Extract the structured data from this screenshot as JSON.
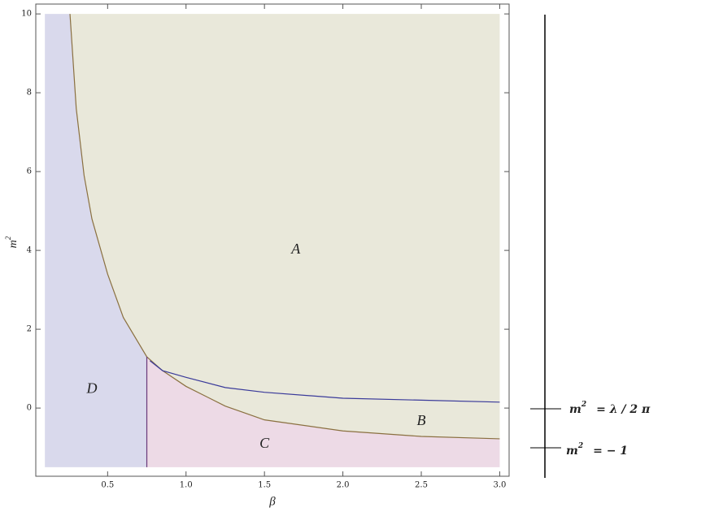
{
  "chart_data": {
    "type": "region",
    "x_label": "β",
    "y_label": "m",
    "y_label_sup": "2",
    "xlim": [
      0.042,
      3.06
    ],
    "ylim": [
      -1.73,
      10.25
    ],
    "xticks": [
      0.5,
      {
        "value": 1,
        "label": "1.0"
      },
      1.5,
      {
        "value": 2,
        "label": "2.0"
      },
      2.5,
      {
        "value": 3,
        "label": "3.0"
      }
    ],
    "yticks": [
      0,
      2,
      4,
      6,
      8,
      10
    ],
    "regions": [
      {
        "color": "#d9d9ec",
        "x": [
          0.1,
          0.1,
          0.26,
          0.3,
          0.35,
          0.4,
          0.5,
          0.6,
          0.75,
          0.75
        ],
        "y": [
          -1.5,
          10,
          10,
          7.6,
          5.9,
          4.8,
          3.4,
          2.3,
          1.3,
          -1.5
        ]
      },
      {
        "color": "#eddae6",
        "x": [
          0.75,
          0.75,
          0.85,
          1.0,
          1.25,
          1.5,
          2.0,
          2.5,
          3.0,
          3.0
        ],
        "y": [
          -1.5,
          1.3,
          0.95,
          0.55,
          0.05,
          -0.3,
          -0.58,
          -0.72,
          -0.78,
          -1.5
        ]
      },
      {
        "color": "#e9e8da",
        "x": [
          0.26,
          3.0,
          3.0,
          2.5,
          2.0,
          1.5,
          1.25,
          1.0,
          0.85,
          0.75,
          0.6,
          0.5,
          0.4,
          0.35,
          0.3
        ],
        "y": [
          10,
          10,
          -0.78,
          -0.72,
          -0.58,
          -0.3,
          0.05,
          0.55,
          0.95,
          1.3,
          2.3,
          3.4,
          4.8,
          5.9,
          7.6
        ]
      }
    ],
    "curves": [
      {
        "color": "#8a7040",
        "x": [
          0.26,
          0.3,
          0.35,
          0.4,
          0.5,
          0.6,
          0.75,
          0.85,
          1.0,
          1.25,
          1.5,
          2.0,
          2.5,
          3.0
        ],
        "values": [
          10,
          7.6,
          5.9,
          4.8,
          3.4,
          2.3,
          1.3,
          0.95,
          0.55,
          0.05,
          -0.3,
          -0.58,
          -0.72,
          -0.78
        ]
      },
      {
        "color": "#3a3a9a",
        "x": [
          0.77,
          0.85,
          1.0,
          1.25,
          1.5,
          2.0,
          2.5,
          3.0
        ],
        "values": [
          1.2,
          0.95,
          0.78,
          0.52,
          0.4,
          0.25,
          0.2,
          0.15
        ]
      },
      {
        "color": "#6a3a7a",
        "x": [
          0.75,
          0.75
        ],
        "values": [
          -1.5,
          1.3
        ]
      }
    ],
    "annotations": [
      {
        "text": "A",
        "x": 1.7,
        "y": 4
      },
      {
        "text": "B",
        "x": 2.5,
        "y": -0.35
      },
      {
        "text": "C",
        "x": 1.5,
        "y": -0.92
      },
      {
        "text": "D",
        "x": 0.4,
        "y": 0.47
      }
    ]
  },
  "side": {
    "marks": [
      {
        "var": "m",
        "sup": "2",
        "rest": "= λ / 2 π"
      },
      {
        "var": "m",
        "sup": "2",
        "rest": "= − 1"
      }
    ]
  }
}
